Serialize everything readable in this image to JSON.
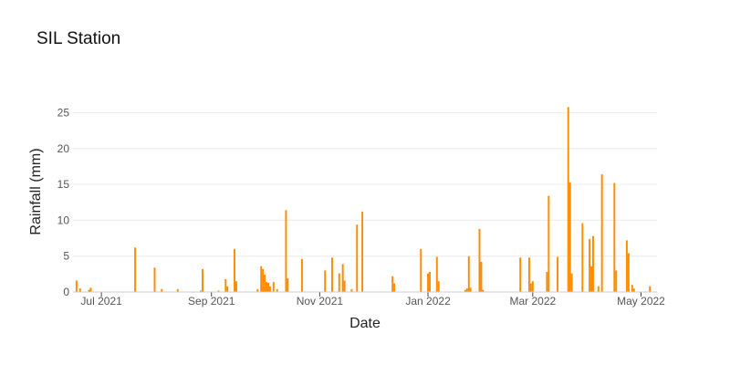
{
  "chart_data": {
    "type": "bar",
    "title": "SIL Station",
    "xlabel": "Date",
    "ylabel": "Rainfall (mm)",
    "ylim": [
      0,
      28
    ],
    "xlim": [
      "2021-06-15",
      "2022-05-10"
    ],
    "y_ticks": [
      0,
      5,
      10,
      15,
      20,
      25
    ],
    "x_ticks": [
      {
        "date": "2021-07-01",
        "label": "Jul 2021"
      },
      {
        "date": "2021-09-01",
        "label": "Sep 2021"
      },
      {
        "date": "2021-11-01",
        "label": "Nov 2021"
      },
      {
        "date": "2022-01-01",
        "label": "Jan 2022"
      },
      {
        "date": "2022-03-01",
        "label": "Mar 2022"
      },
      {
        "date": "2022-05-01",
        "label": "May 2022"
      }
    ],
    "grid": true,
    "legend": "none",
    "color": "#ff8c00",
    "x": [
      "2021-06-17",
      "2021-06-19",
      "2021-06-24",
      "2021-06-25",
      "2021-07-20",
      "2021-07-31",
      "2021-08-04",
      "2021-08-13",
      "2021-08-26",
      "2021-08-27",
      "2021-09-05",
      "2021-09-09",
      "2021-09-10",
      "2021-09-14",
      "2021-09-15",
      "2021-09-27",
      "2021-09-29",
      "2021-09-30",
      "2021-10-01",
      "2021-10-02",
      "2021-10-03",
      "2021-10-04",
      "2021-10-06",
      "2021-10-08",
      "2021-10-13",
      "2021-10-14",
      "2021-10-22",
      "2021-11-04",
      "2021-11-08",
      "2021-11-12",
      "2021-11-14",
      "2021-11-15",
      "2021-11-19",
      "2021-11-22",
      "2021-11-25",
      "2021-12-12",
      "2021-12-13",
      "2021-12-28",
      "2022-01-01",
      "2022-01-02",
      "2022-01-06",
      "2022-01-07",
      "2022-01-22",
      "2022-01-23",
      "2022-01-24",
      "2022-01-25",
      "2022-01-30",
      "2022-01-31",
      "2022-02-01",
      "2022-02-22",
      "2022-02-27",
      "2022-02-28",
      "2022-03-01",
      "2022-03-09",
      "2022-03-10",
      "2022-03-15",
      "2022-03-21",
      "2022-03-22",
      "2022-03-23",
      "2022-03-29",
      "2022-04-02",
      "2022-04-03",
      "2022-04-04",
      "2022-04-07",
      "2022-04-09",
      "2022-04-16",
      "2022-04-17",
      "2022-04-23",
      "2022-04-24",
      "2022-04-26",
      "2022-04-27",
      "2022-05-06"
    ],
    "values": [
      1.6,
      0.5,
      0.3,
      0.6,
      6.2,
      3.4,
      0.4,
      0.4,
      0.2,
      3.2,
      0.2,
      1.8,
      0.8,
      6.0,
      1.5,
      0.4,
      3.6,
      3.2,
      2.4,
      1.4,
      1.3,
      0.8,
      1.4,
      0.4,
      11.4,
      1.9,
      4.6,
      3.0,
      4.8,
      2.6,
      3.9,
      1.6,
      0.4,
      9.4,
      11.2,
      2.2,
      1.2,
      6.0,
      2.6,
      2.8,
      4.9,
      1.5,
      0.3,
      0.5,
      5.0,
      0.6,
      8.8,
      4.2,
      0.3,
      4.8,
      4.8,
      1.2,
      1.5,
      2.8,
      13.4,
      4.9,
      25.8,
      15.3,
      2.6,
      9.6,
      7.4,
      3.6,
      7.8,
      0.8,
      16.4,
      15.2,
      3.0,
      7.2,
      5.4,
      1.0,
      0.5,
      0.8
    ]
  }
}
